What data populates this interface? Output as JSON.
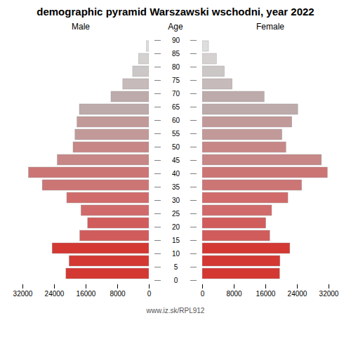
{
  "chart_data": {
    "type": "bar",
    "orientation": "horizontal",
    "title": "demographic pyramid Warszawski wschodni, year 2022",
    "ylabel": "Age",
    "categories": [
      "0",
      "5",
      "10",
      "15",
      "20",
      "25",
      "30",
      "35",
      "40",
      "45",
      "50",
      "55",
      "60",
      "65",
      "70",
      "75",
      "80",
      "85",
      "90"
    ],
    "series": [
      {
        "name": "Male",
        "values": [
          21000,
          20200,
          24500,
          17500,
          15500,
          17200,
          20800,
          27000,
          30500,
          23200,
          19200,
          18700,
          18200,
          17600,
          9600,
          6600,
          4100,
          2600,
          600
        ],
        "colors": [
          "#d43833",
          "#d43833",
          "#d43833",
          "#d15c5c",
          "#d15c5c",
          "#d16b6b",
          "#d16b6b",
          "#cc7575",
          "#cc7575",
          "#c78787",
          "#c78787",
          "#c29999",
          "#c29999",
          "#bdabab",
          "#bdabab",
          "#c7baba",
          "#ccc7c7",
          "#d6d1d1",
          "#dedede"
        ]
      },
      {
        "name": "Female",
        "values": [
          19600,
          19700,
          22200,
          17100,
          16100,
          17600,
          21700,
          25200,
          31700,
          30200,
          21200,
          20200,
          22700,
          24200,
          15700,
          7600,
          5600,
          3600,
          1600
        ],
        "colors": [
          "#d43833",
          "#d43833",
          "#d43833",
          "#d15c5c",
          "#d15c5c",
          "#d16b6b",
          "#d16b6b",
          "#cc7575",
          "#cc7575",
          "#c78787",
          "#c78787",
          "#c29999",
          "#c29999",
          "#bdabab",
          "#bdabab",
          "#c7baba",
          "#ccc7c7",
          "#d6d1d1",
          "#dedede"
        ]
      }
    ],
    "xlim": [
      0,
      32000
    ],
    "xticks": [
      0,
      8000,
      16000,
      24000,
      32000
    ],
    "grid": false,
    "annotations": [
      "www.iz.sk/RPL912"
    ]
  }
}
